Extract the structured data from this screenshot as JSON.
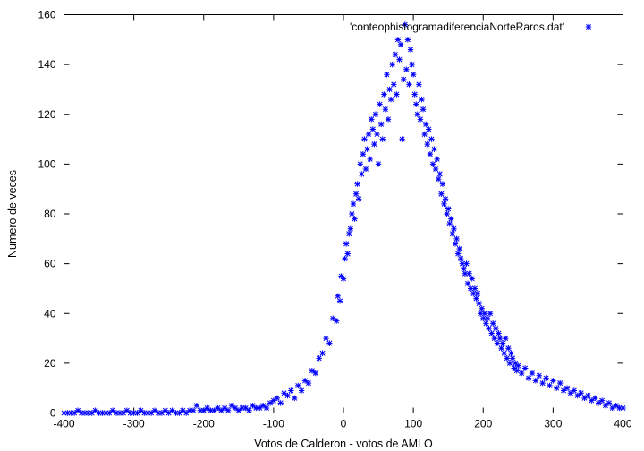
{
  "chart_data": {
    "type": "scatter",
    "title": "",
    "xlabel": "Votos de Calderon - votos de AMLO",
    "ylabel": "Numero de veces",
    "xlim": [
      -400,
      400
    ],
    "ylim": [
      0,
      160
    ],
    "xticks": [
      -400,
      -300,
      -200,
      -100,
      0,
      100,
      200,
      300,
      400
    ],
    "yticks": [
      0,
      20,
      40,
      60,
      80,
      100,
      120,
      140,
      160
    ],
    "xtick_labels": [
      "-400",
      "-300",
      "-200",
      "-100",
      "0",
      "100",
      "200",
      "300",
      "400"
    ],
    "ytick_labels": [
      "0",
      "20",
      "40",
      "60",
      "80",
      "100",
      "120",
      "140",
      "160"
    ],
    "grid": false,
    "legend_position": "top-right",
    "marker": "star",
    "series": [
      {
        "name": "'conteophistogramadiferenciaNorteRaros.dat'",
        "color": "#0000ff",
        "points": [
          [
            -400,
            0
          ],
          [
            -395,
            0
          ],
          [
            -390,
            0
          ],
          [
            -385,
            0
          ],
          [
            -380,
            1
          ],
          [
            -375,
            0
          ],
          [
            -370,
            0
          ],
          [
            -365,
            0
          ],
          [
            -360,
            0
          ],
          [
            -355,
            1
          ],
          [
            -350,
            0
          ],
          [
            -345,
            0
          ],
          [
            -340,
            0
          ],
          [
            -335,
            0
          ],
          [
            -330,
            1
          ],
          [
            -325,
            0
          ],
          [
            -320,
            0
          ],
          [
            -315,
            0
          ],
          [
            -310,
            1
          ],
          [
            -305,
            0
          ],
          [
            -300,
            0
          ],
          [
            -295,
            0
          ],
          [
            -290,
            1
          ],
          [
            -285,
            0
          ],
          [
            -280,
            0
          ],
          [
            -275,
            0
          ],
          [
            -270,
            1
          ],
          [
            -265,
            0
          ],
          [
            -260,
            0
          ],
          [
            -255,
            1
          ],
          [
            -250,
            0
          ],
          [
            -245,
            1
          ],
          [
            -240,
            0
          ],
          [
            -235,
            0
          ],
          [
            -230,
            1
          ],
          [
            -225,
            0
          ],
          [
            -220,
            1
          ],
          [
            -215,
            1
          ],
          [
            -210,
            3
          ],
          [
            -205,
            1
          ],
          [
            -200,
            1
          ],
          [
            -195,
            2
          ],
          [
            -190,
            1
          ],
          [
            -185,
            1
          ],
          [
            -180,
            2
          ],
          [
            -175,
            1
          ],
          [
            -170,
            2
          ],
          [
            -165,
            1
          ],
          [
            -160,
            3
          ],
          [
            -155,
            2
          ],
          [
            -150,
            1
          ],
          [
            -145,
            2
          ],
          [
            -140,
            2
          ],
          [
            -135,
            1
          ],
          [
            -130,
            3
          ],
          [
            -125,
            2
          ],
          [
            -120,
            2
          ],
          [
            -115,
            3
          ],
          [
            -110,
            2
          ],
          [
            -105,
            4
          ],
          [
            -100,
            5
          ],
          [
            -95,
            6
          ],
          [
            -90,
            4
          ],
          [
            -85,
            8
          ],
          [
            -80,
            7
          ],
          [
            -75,
            9
          ],
          [
            -70,
            6
          ],
          [
            -65,
            11
          ],
          [
            -60,
            9
          ],
          [
            -55,
            13
          ],
          [
            -50,
            12
          ],
          [
            -45,
            17
          ],
          [
            -40,
            16
          ],
          [
            -35,
            22
          ],
          [
            -30,
            24
          ],
          [
            -25,
            30
          ],
          [
            -20,
            28
          ],
          [
            -15,
            38
          ],
          [
            -10,
            37
          ],
          [
            -8,
            47
          ],
          [
            -5,
            45
          ],
          [
            -3,
            55
          ],
          [
            0,
            54
          ],
          [
            2,
            62
          ],
          [
            4,
            68
          ],
          [
            6,
            64
          ],
          [
            8,
            72
          ],
          [
            10,
            74
          ],
          [
            12,
            80
          ],
          [
            14,
            84
          ],
          [
            16,
            78
          ],
          [
            18,
            88
          ],
          [
            20,
            92
          ],
          [
            22,
            86
          ],
          [
            24,
            100
          ],
          [
            26,
            96
          ],
          [
            28,
            104
          ],
          [
            30,
            110
          ],
          [
            32,
            98
          ],
          [
            34,
            106
          ],
          [
            36,
            112
          ],
          [
            38,
            102
          ],
          [
            40,
            118
          ],
          [
            42,
            114
          ],
          [
            44,
            108
          ],
          [
            46,
            120
          ],
          [
            48,
            112
          ],
          [
            50,
            100
          ],
          [
            52,
            124
          ],
          [
            54,
            116
          ],
          [
            56,
            110
          ],
          [
            58,
            128
          ],
          [
            60,
            122
          ],
          [
            62,
            136
          ],
          [
            64,
            118
          ],
          [
            66,
            130
          ],
          [
            68,
            126
          ],
          [
            70,
            140
          ],
          [
            72,
            132
          ],
          [
            74,
            144
          ],
          [
            76,
            128
          ],
          [
            78,
            150
          ],
          [
            80,
            142
          ],
          [
            82,
            148
          ],
          [
            84,
            110
          ],
          [
            86,
            134
          ],
          [
            88,
            156
          ],
          [
            90,
            138
          ],
          [
            92,
            150
          ],
          [
            94,
            132
          ],
          [
            96,
            146
          ],
          [
            98,
            140
          ],
          [
            100,
            136
          ],
          [
            102,
            128
          ],
          [
            104,
            124
          ],
          [
            106,
            120
          ],
          [
            108,
            132
          ],
          [
            110,
            118
          ],
          [
            112,
            126
          ],
          [
            114,
            122
          ],
          [
            116,
            112
          ],
          [
            118,
            116
          ],
          [
            120,
            108
          ],
          [
            122,
            114
          ],
          [
            124,
            104
          ],
          [
            126,
            110
          ],
          [
            128,
            100
          ],
          [
            130,
            106
          ],
          [
            132,
            98
          ],
          [
            134,
            102
          ],
          [
            136,
            94
          ],
          [
            138,
            96
          ],
          [
            140,
            88
          ],
          [
            142,
            92
          ],
          [
            144,
            84
          ],
          [
            146,
            86
          ],
          [
            148,
            80
          ],
          [
            150,
            82
          ],
          [
            152,
            76
          ],
          [
            154,
            78
          ],
          [
            156,
            72
          ],
          [
            158,
            74
          ],
          [
            160,
            68
          ],
          [
            162,
            70
          ],
          [
            164,
            64
          ],
          [
            166,
            66
          ],
          [
            168,
            62
          ],
          [
            170,
            60
          ],
          [
            172,
            58
          ],
          [
            174,
            56
          ],
          [
            176,
            60
          ],
          [
            178,
            52
          ],
          [
            180,
            56
          ],
          [
            182,
            50
          ],
          [
            184,
            54
          ],
          [
            186,
            48
          ],
          [
            188,
            50
          ],
          [
            190,
            46
          ],
          [
            192,
            48
          ],
          [
            194,
            44
          ],
          [
            196,
            40
          ],
          [
            198,
            42
          ],
          [
            200,
            38
          ],
          [
            202,
            40
          ],
          [
            204,
            36
          ],
          [
            206,
            38
          ],
          [
            208,
            34
          ],
          [
            210,
            40
          ],
          [
            212,
            32
          ],
          [
            214,
            36
          ],
          [
            216,
            30
          ],
          [
            218,
            34
          ],
          [
            220,
            28
          ],
          [
            222,
            32
          ],
          [
            224,
            30
          ],
          [
            226,
            26
          ],
          [
            228,
            28
          ],
          [
            230,
            24
          ],
          [
            232,
            30
          ],
          [
            234,
            22
          ],
          [
            236,
            26
          ],
          [
            238,
            20
          ],
          [
            240,
            24
          ],
          [
            242,
            22
          ],
          [
            244,
            18
          ],
          [
            246,
            20
          ],
          [
            248,
            17
          ],
          [
            250,
            19
          ],
          [
            255,
            16
          ],
          [
            260,
            18
          ],
          [
            265,
            14
          ],
          [
            270,
            16
          ],
          [
            275,
            13
          ],
          [
            280,
            15
          ],
          [
            285,
            12
          ],
          [
            290,
            14
          ],
          [
            295,
            11
          ],
          [
            300,
            13
          ],
          [
            305,
            10
          ],
          [
            310,
            12
          ],
          [
            315,
            9
          ],
          [
            320,
            10
          ],
          [
            325,
            8
          ],
          [
            330,
            9
          ],
          [
            335,
            7
          ],
          [
            340,
            8
          ],
          [
            345,
            6
          ],
          [
            350,
            7
          ],
          [
            355,
            5
          ],
          [
            360,
            6
          ],
          [
            365,
            4
          ],
          [
            370,
            5
          ],
          [
            375,
            3
          ],
          [
            380,
            4
          ],
          [
            385,
            2
          ],
          [
            390,
            3
          ],
          [
            395,
            2
          ],
          [
            400,
            2
          ]
        ]
      }
    ]
  }
}
